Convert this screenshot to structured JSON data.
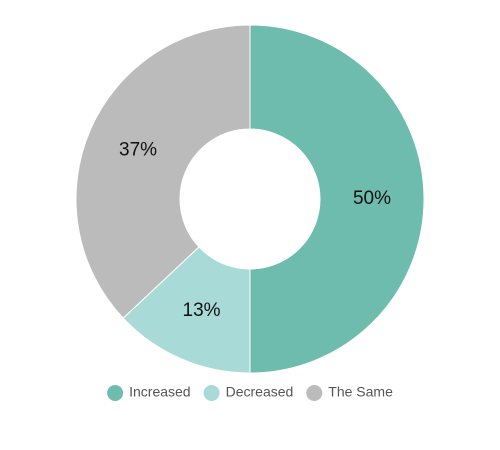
{
  "chart_data": {
    "type": "donut",
    "categories": [
      "Increased",
      "Decreased",
      "The Same"
    ],
    "values": [
      50,
      13,
      37
    ],
    "value_labels": [
      "50%",
      "13%",
      "37%"
    ],
    "colors": [
      "#6dbcad",
      "#a8dbd8",
      "#bbbbbb"
    ]
  }
}
